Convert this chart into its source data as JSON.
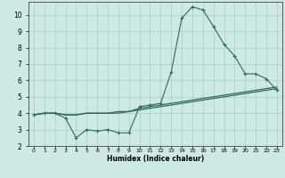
{
  "xlabel": "Humidex (Indice chaleur)",
  "x_values": [
    0,
    1,
    2,
    3,
    4,
    5,
    6,
    7,
    8,
    9,
    10,
    11,
    12,
    13,
    14,
    15,
    16,
    17,
    18,
    19,
    20,
    21,
    22,
    23
  ],
  "line1": [
    3.9,
    4.0,
    4.0,
    3.7,
    2.5,
    3.0,
    2.9,
    3.0,
    2.8,
    2.8,
    4.4,
    4.5,
    4.6,
    6.5,
    9.8,
    10.5,
    10.3,
    9.3,
    8.2,
    7.5,
    6.4,
    6.4,
    6.1,
    5.4
  ],
  "line2": [
    3.9,
    4.0,
    4.0,
    3.9,
    3.9,
    4.0,
    4.0,
    4.0,
    4.1,
    4.1,
    4.3,
    4.4,
    4.5,
    4.6,
    4.7,
    4.8,
    4.9,
    5.0,
    5.1,
    5.2,
    5.3,
    5.4,
    5.5,
    5.6
  ],
  "line3": [
    3.9,
    4.0,
    4.0,
    3.9,
    3.9,
    4.0,
    4.0,
    4.0,
    4.0,
    4.1,
    4.2,
    4.3,
    4.4,
    4.5,
    4.6,
    4.7,
    4.8,
    4.9,
    5.0,
    5.1,
    5.2,
    5.3,
    5.4,
    5.5
  ],
  "line_color": "#2e6b5e",
  "bg_color": "#cce9e4",
  "grid_color": "#aaccca",
  "ylim": [
    2,
    10.8
  ],
  "yticks": [
    2,
    3,
    4,
    5,
    6,
    7,
    8,
    9,
    10
  ],
  "xlim": [
    -0.5,
    23.5
  ],
  "xtick_labels": [
    "0",
    "1",
    "2",
    "3",
    "4",
    "5",
    "6",
    "7",
    "8",
    "9",
    "10",
    "11",
    "12",
    "13",
    "14",
    "15",
    "16",
    "17",
    "18",
    "19",
    "20",
    "21",
    "22",
    "23"
  ]
}
